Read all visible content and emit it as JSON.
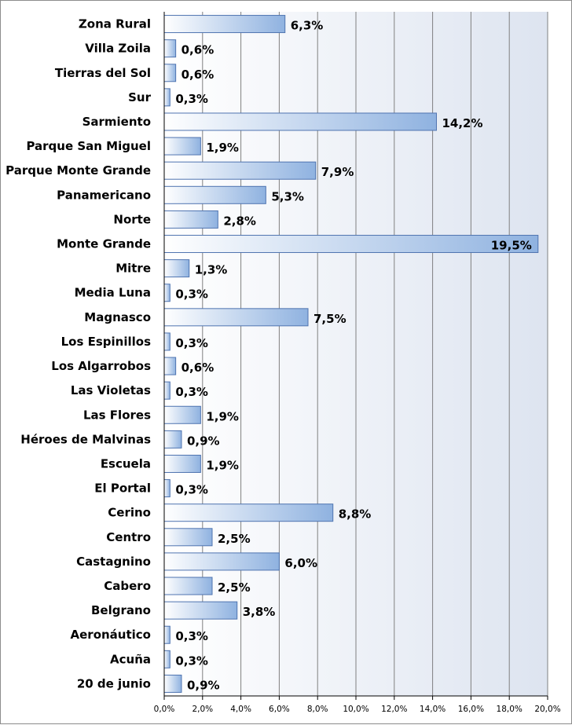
{
  "chart_data": {
    "type": "bar",
    "orientation": "horizontal",
    "categories": [
      "Zona Rural",
      "Villa Zoila",
      "Tierras del Sol",
      "Sur",
      "Sarmiento",
      "Parque San Miguel",
      "Parque Monte Grande",
      "Panamericano",
      "Norte",
      "Monte Grande",
      "Mitre",
      "Media Luna",
      "Magnasco",
      "Los Espinillos",
      "Los Algarrobos",
      "Las Violetas",
      "Las Flores",
      "Héroes de Malvinas",
      "Escuela",
      "El Portal",
      "Cerino",
      "Centro",
      "Castagnino",
      "Cabero",
      "Belgrano",
      "Aeronáutico",
      "Acuña",
      "20 de junio"
    ],
    "values": [
      6.3,
      0.6,
      0.6,
      0.3,
      14.2,
      1.9,
      7.9,
      5.3,
      2.8,
      19.5,
      1.3,
      0.3,
      7.5,
      0.3,
      0.6,
      0.3,
      1.9,
      0.9,
      1.9,
      0.3,
      8.8,
      2.5,
      6.0,
      2.5,
      3.8,
      0.3,
      0.3,
      0.9
    ],
    "data_labels": [
      "6,3%",
      "0,6%",
      "0,6%",
      "0,3%",
      "14,2%",
      "1,9%",
      "7,9%",
      "5,3%",
      "2,8%",
      "19,5%",
      "1,3%",
      "0,3%",
      "7,5%",
      "0,3%",
      "0,6%",
      "0,3%",
      "1,9%",
      "0,9%",
      "1,9%",
      "0,3%",
      "8,8%",
      "2,5%",
      "6,0%",
      "2,5%",
      "3,8%",
      "0,3%",
      "0,3%",
      "0,9%"
    ],
    "xlim": [
      0,
      20
    ],
    "x_ticks": [
      0,
      2,
      4,
      6,
      8,
      10,
      12,
      14,
      16,
      18,
      20
    ],
    "x_tick_labels": [
      "0,0%",
      "2,0%",
      "4,0%",
      "6,0%",
      "8,0%",
      "10,0%",
      "12,0%",
      "14,0%",
      "16,0%",
      "18,0%",
      "20,0%"
    ],
    "title": "",
    "xlabel": "",
    "ylabel": "",
    "grid": true,
    "legend": "none",
    "colors": {
      "bar_start": "#ffffff",
      "bar_end": "#8fb2e0",
      "bar_border": "#4f74b0",
      "grid": "#808080",
      "plot_bg_start": "#ffffff",
      "plot_bg_end": "#dde4f0"
    }
  }
}
